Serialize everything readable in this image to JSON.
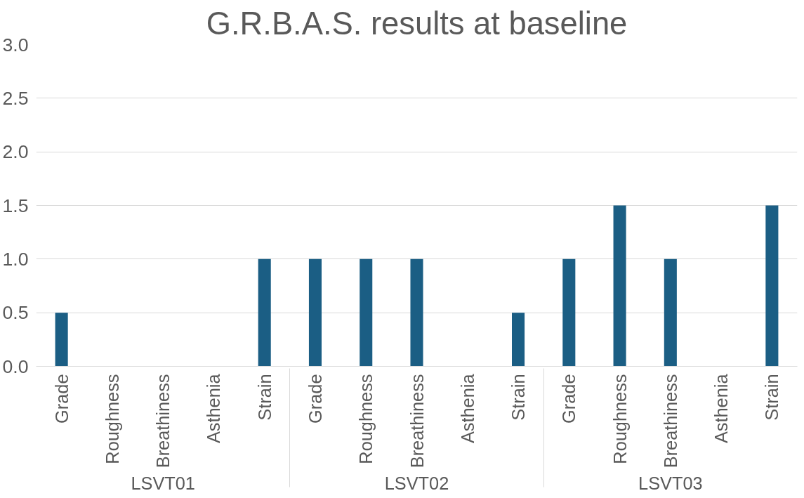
{
  "chart_data": {
    "type": "bar",
    "title": "G.R.B.A.S. results at baseline",
    "categories": [
      "Grade",
      "Roughness",
      "Breathiness",
      "Asthenia",
      "Strain",
      "Grade",
      "Roughness",
      "Breathiness",
      "Asthenia",
      "Strain",
      "Grade",
      "Roughness",
      "Breathiness",
      "Asthenia",
      "Strain"
    ],
    "annotations": [
      "LSVT01",
      "LSVT02",
      "LSVT03"
    ],
    "values": [
      0.5,
      0,
      0,
      0,
      1.0,
      1.0,
      1.0,
      1.0,
      0,
      0.5,
      1.0,
      1.5,
      1.0,
      0,
      1.5
    ],
    "color": "#1b5e84",
    "ylim": [
      0,
      3
    ],
    "yticks": [
      {
        "value": 0,
        "label": "0.0"
      },
      {
        "value": 0.5,
        "label": "0.5"
      },
      {
        "value": 1,
        "label": "1.0"
      },
      {
        "value": 1.5,
        "label": "1.5"
      },
      {
        "value": 2,
        "label": "2.0"
      },
      {
        "value": 2.5,
        "label": "2.5"
      },
      {
        "value": 3,
        "label": "3.0"
      }
    ],
    "grid": "y"
  }
}
